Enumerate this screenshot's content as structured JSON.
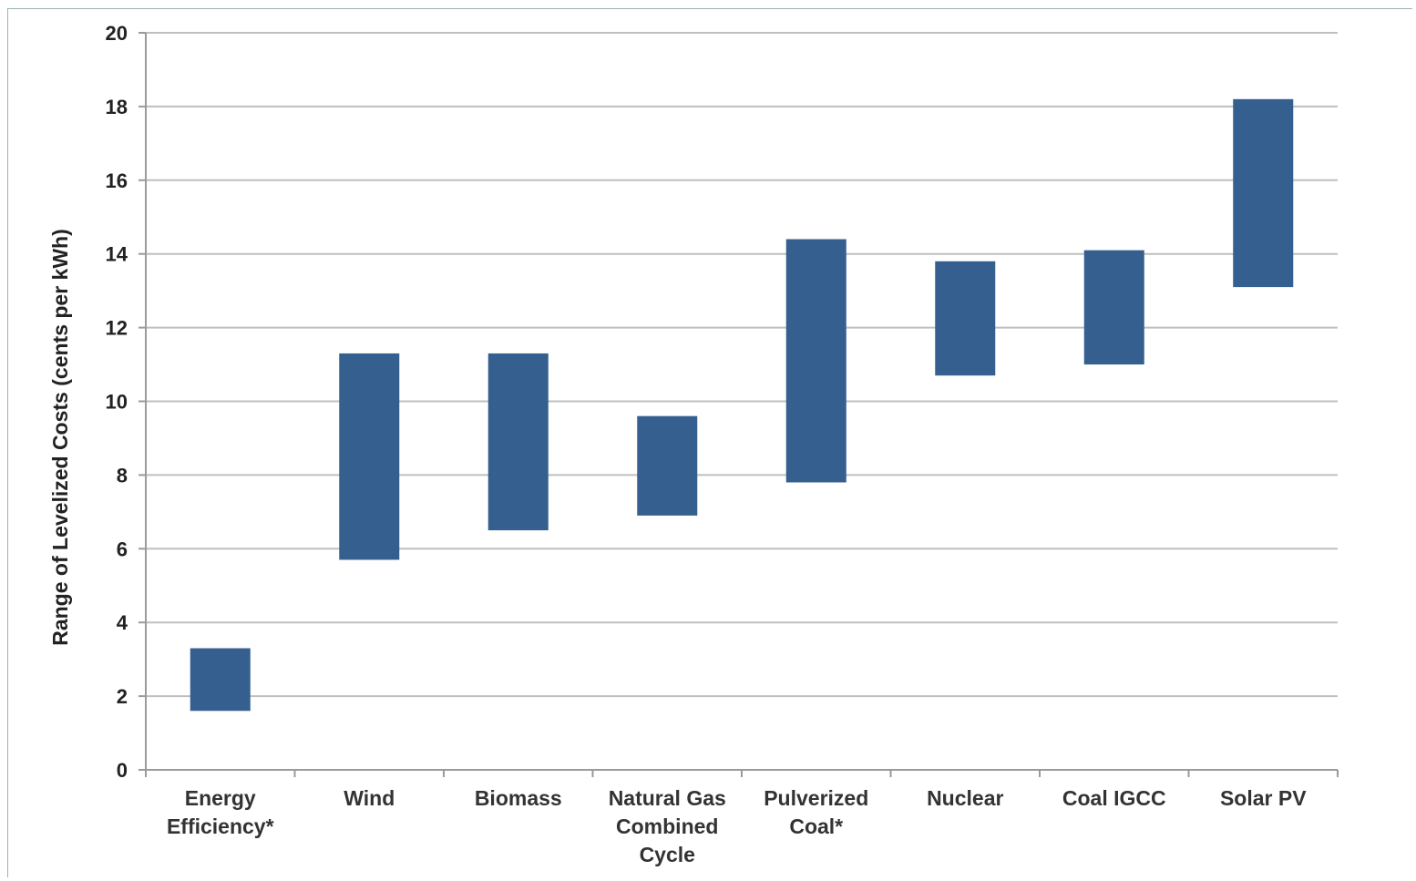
{
  "chart_data": {
    "type": "bar",
    "subtype": "floating-range",
    "title": "",
    "xlabel": "",
    "ylabel": "Range of Levelized Costs (cents per kWh)",
    "ylim": [
      0,
      20
    ],
    "yticks": [
      "0",
      "2",
      "4",
      "6",
      "8",
      "10",
      "12",
      "14",
      "16",
      "18",
      "20"
    ],
    "grid": true,
    "bar_color": "#355f8f",
    "grid_color": "#bfbfbf",
    "categories": [
      [
        "Energy",
        "Efficiency*"
      ],
      [
        "Wind"
      ],
      [
        "Biomass"
      ],
      [
        "Natural Gas",
        "Combined",
        "Cycle"
      ],
      [
        "Pulverized",
        "Coal*"
      ],
      [
        "Nuclear"
      ],
      [
        "Coal IGCC"
      ],
      [
        "Solar PV"
      ]
    ],
    "ranges": [
      {
        "low": 1.6,
        "high": 3.3
      },
      {
        "low": 5.7,
        "high": 11.3
      },
      {
        "low": 6.5,
        "high": 11.3
      },
      {
        "low": 6.9,
        "high": 9.6
      },
      {
        "low": 7.8,
        "high": 14.4
      },
      {
        "low": 10.7,
        "high": 13.8
      },
      {
        "low": 11.0,
        "high": 14.1
      },
      {
        "low": 13.1,
        "high": 18.2
      }
    ]
  }
}
